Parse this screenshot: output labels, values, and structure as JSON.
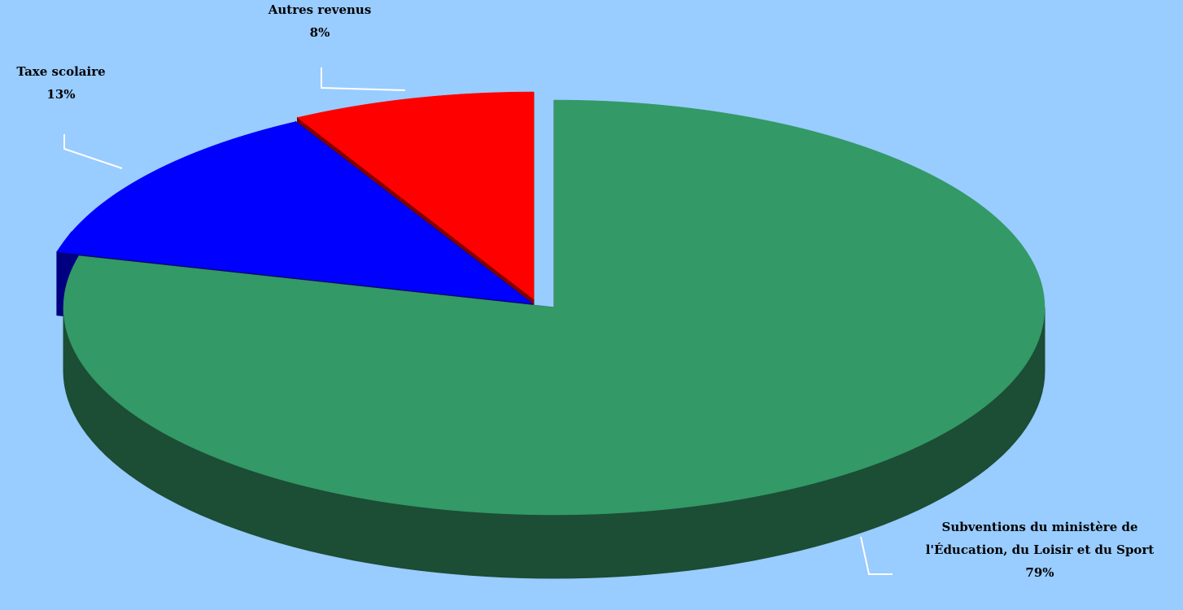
{
  "chart_data": {
    "type": "pie",
    "style": "3d-exploded",
    "title": "",
    "slices": [
      {
        "name_lines": [
          "Subventions du ministère de",
          "l'Éducation, du Loisir et du Sport"
        ],
        "value": 79,
        "percent_label": "79%",
        "color": "#339966",
        "side_color": "#1c4d35"
      },
      {
        "name_lines": [
          "Taxe scolaire"
        ],
        "value": 13,
        "percent_label": "13%",
        "color": "#0000ff",
        "side_color": "#000080"
      },
      {
        "name_lines": [
          "Autres revenus"
        ],
        "value": 8,
        "percent_label": "8%",
        "color": "#ff0000",
        "side_color": "#800000"
      }
    ],
    "legend": "none",
    "label_color": "#000000",
    "leader_line_color": "#ffffff",
    "background_color": "#99ccff"
  }
}
